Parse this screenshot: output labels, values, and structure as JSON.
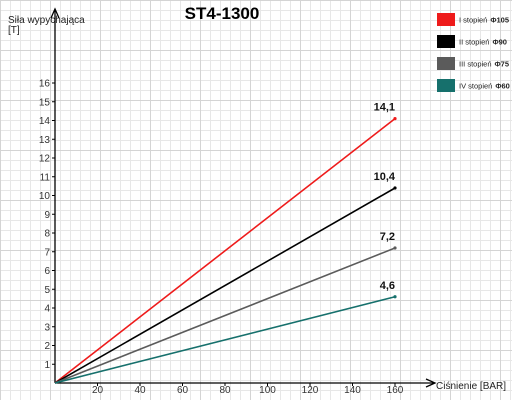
{
  "chart_data": {
    "type": "line",
    "title": "ST4-1300",
    "ylabel_lines": [
      "Siła wypychająca",
      "[T]"
    ],
    "xlabel": "Ciśnienie [BAR]",
    "xlim": [
      0,
      160
    ],
    "ylim": [
      0,
      16
    ],
    "x_ticks": [
      20,
      40,
      60,
      80,
      100,
      120,
      140,
      160
    ],
    "y_ticks": [
      1,
      2,
      3,
      4,
      5,
      6,
      7,
      8,
      9,
      10,
      11,
      12,
      13,
      14,
      15,
      16
    ],
    "grid": true,
    "legend_position": "top-right",
    "series": [
      {
        "name": "I stopień",
        "diameter": "Φ105",
        "color": "#ee1b1b",
        "x": [
          0,
          160
        ],
        "y": [
          0,
          14.1
        ],
        "end_label": "14,1"
      },
      {
        "name": "II stopień",
        "diameter": "Φ90",
        "color": "#000000",
        "x": [
          0,
          160
        ],
        "y": [
          0,
          10.4
        ],
        "end_label": "10,4"
      },
      {
        "name": "III stopień",
        "diameter": "Φ75",
        "color": "#5b5b5b",
        "x": [
          0,
          160
        ],
        "y": [
          0,
          7.2
        ],
        "end_label": "7,2"
      },
      {
        "name": "IV stopień",
        "diameter": "Φ60",
        "color": "#16706c",
        "x": [
          0,
          160
        ],
        "y": [
          0,
          4.6
        ],
        "end_label": "4,6"
      }
    ]
  }
}
